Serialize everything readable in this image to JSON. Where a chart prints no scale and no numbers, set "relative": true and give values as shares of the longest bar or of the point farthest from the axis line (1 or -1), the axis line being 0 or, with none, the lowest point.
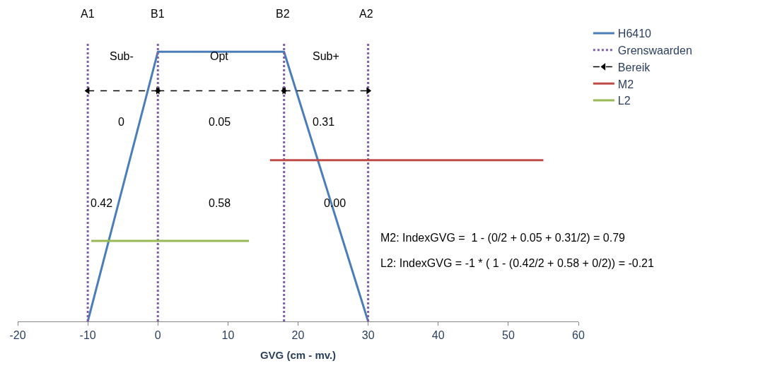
{
  "chart_data": {
    "type": "line",
    "relative": true,
    "xlabel": "GVG (cm - mv.)",
    "xlim": [
      -20,
      60
    ],
    "xticks": [
      -20,
      -10,
      0,
      10,
      20,
      30,
      40,
      50,
      60
    ],
    "tick_labels": "x",
    "legend": "right",
    "series": [
      {
        "name": "H6410",
        "color": "#4a7ebb",
        "line_style": "solid",
        "x": [
          -10,
          0,
          18,
          30
        ],
        "values": [
          0,
          0.97,
          0.97,
          0
        ]
      },
      {
        "name": "Grenswaarden",
        "color": "#7f5fa8",
        "line_style": "dotted",
        "x": [
          -10,
          -10,
          null,
          0,
          0,
          null,
          18,
          18,
          null,
          30,
          30
        ],
        "values": [
          0,
          1,
          null,
          0,
          1,
          null,
          0,
          1,
          null,
          0,
          1
        ]
      },
      {
        "name": "Bereik",
        "color": "#000000",
        "line_style": "dashed",
        "marker": "triangle",
        "x": [
          -10,
          0,
          null,
          0,
          18,
          null,
          18,
          30
        ],
        "values": [
          0.83,
          0.83,
          null,
          0.83,
          0.83,
          null,
          0.83,
          0.83
        ]
      },
      {
        "name": "M2",
        "color": "#be4b48",
        "line_style": "solid",
        "x": [
          16,
          55
        ],
        "values": [
          0.58,
          0.58
        ]
      },
      {
        "name": "L2",
        "color": "#98b954",
        "line_style": "solid",
        "x": [
          -9.5,
          13
        ],
        "values": [
          0.29,
          0.29
        ]
      }
    ],
    "annotations": [
      "A1",
      "B1",
      "B2",
      "A2",
      "Sub-",
      "Opt",
      "Sub+",
      "0",
      "0.05",
      "0.31",
      "0.42",
      "0.58",
      "0.00",
      "M2: IndexGVG =  1 - (0/2 + 0.05 + 0.31/2) = 0.79",
      "L2: IndexGVG = -1 * ( 1 - (0.42/2 + 0.58 + 0/2)) = -0.21"
    ]
  }
}
